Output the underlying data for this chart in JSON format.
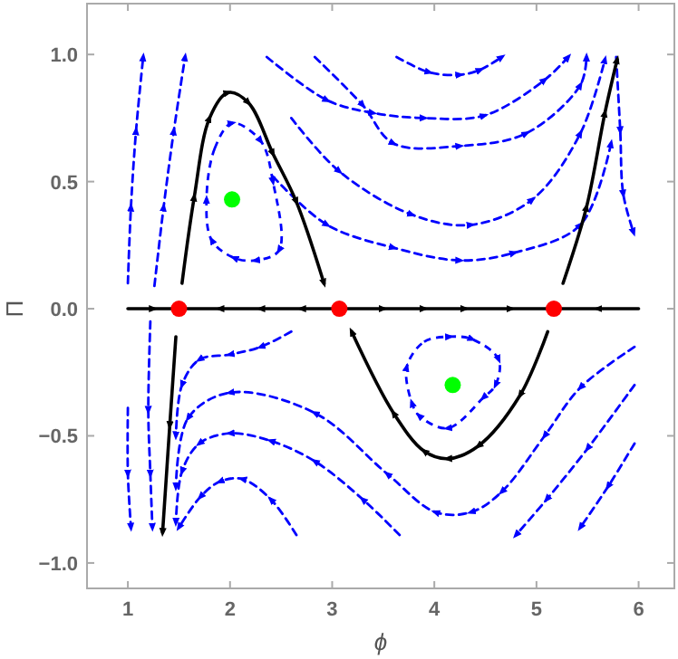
{
  "chart_data": {
    "type": "line",
    "xlabel": "ϕ",
    "ylabel": "Π",
    "xlim": [
      0.6,
      6.35
    ],
    "ylim": [
      -1.1,
      1.2
    ],
    "xticks": [
      1,
      2,
      3,
      4,
      5,
      6
    ],
    "yticks": [
      {
        "value": -1,
        "label": "−1.0"
      },
      {
        "value": -0.5,
        "label": "−0.5"
      },
      {
        "value": 0,
        "label": "0.0"
      },
      {
        "value": 0.5,
        "label": "0.5"
      },
      {
        "value": 1,
        "label": "1.0"
      }
    ],
    "marker": "none",
    "series": [
      {
        "color": "#0000ff",
        "line_style": "dashed",
        "x": [
          1.0,
          1.03,
          1.08,
          1.15
        ],
        "values": [
          0.1,
          0.4,
          0.7,
          0.99
        ]
      },
      {
        "color": "#0000ff",
        "line_style": "dashed",
        "x": [
          1.26,
          1.35,
          1.45,
          1.56
        ],
        "values": [
          0.09,
          0.4,
          0.7,
          0.99
        ]
      },
      {
        "color": "#0000ff",
        "line_style": "dashed",
        "x": [
          3.63,
          3.95,
          4.25,
          4.45,
          4.66
        ],
        "values": [
          0.99,
          0.93,
          0.92,
          0.94,
          0.99
        ]
      },
      {
        "color": "#0000ff",
        "line_style": "dashed",
        "x": [
          2.36,
          2.95,
          3.4,
          3.9,
          4.49,
          5.08,
          5.31
        ],
        "values": [
          0.99,
          0.82,
          0.77,
          0.75,
          0.76,
          0.9,
          0.99
        ]
      },
      {
        "color": "#0000ff",
        "line_style": "dashed",
        "x": [
          2.83,
          3.3,
          3.6,
          4.25,
          4.9,
          5.43,
          5.49
        ],
        "values": [
          0.99,
          0.8,
          0.65,
          0.64,
          0.69,
          0.88,
          0.99
        ]
      },
      {
        "color": "#0000ff",
        "line_style": "dashed",
        "x": [
          2.6,
          3.07,
          3.78,
          4.36,
          4.96,
          5.43,
          5.67
        ],
        "values": [
          0.75,
          0.54,
          0.37,
          0.33,
          0.43,
          0.69,
          0.98
        ]
      },
      {
        "color": "#0000ff",
        "line_style": "dashed",
        "x": [
          2.42,
          2.95,
          3.6,
          4.25,
          4.78,
          5.43,
          5.73
        ],
        "values": [
          0.52,
          0.33,
          0.24,
          0.19,
          0.22,
          0.33,
          0.65
        ]
      },
      {
        "color": "#0000ff",
        "line_style": "dashed",
        "x": [
          5.78,
          5.82,
          5.85,
          5.95
        ],
        "values": [
          0.99,
          0.7,
          0.45,
          0.3
        ]
      },
      {
        "color": "#0000ff",
        "line_style": "dashed",
        "x": [
          1.22,
          1.2,
          1.22,
          1.24
        ],
        "values": [
          -0.05,
          -0.4,
          -0.65,
          -0.86
        ]
      },
      {
        "color": "#0000ff",
        "line_style": "dashed",
        "x": [
          1.0,
          1.0,
          1.03
        ],
        "values": [
          -0.39,
          -0.65,
          -0.86
        ]
      },
      {
        "color": "#0000ff",
        "line_style": "dashed",
        "x": [
          2.6,
          2.3,
          2.0,
          1.7,
          1.53,
          1.47
        ],
        "values": [
          -0.09,
          -0.15,
          -0.18,
          -0.2,
          -0.3,
          -0.5
        ]
      },
      {
        "color": "#0000ff",
        "line_style": "dashed",
        "x": [
          5.96,
          5.43,
          5.08,
          4.66,
          4.36,
          4.01,
          3.54,
          2.83,
          2.0,
          1.59,
          1.47
        ],
        "values": [
          -0.15,
          -0.31,
          -0.5,
          -0.72,
          -0.8,
          -0.8,
          -0.65,
          -0.41,
          -0.33,
          -0.43,
          -0.7
        ]
      },
      {
        "color": "#0000ff",
        "line_style": "dashed",
        "x": [
          3.66,
          3.3,
          2.83,
          2.4,
          2.0,
          1.7,
          1.53,
          1.47
        ],
        "values": [
          -0.89,
          -0.75,
          -0.6,
          -0.52,
          -0.49,
          -0.53,
          -0.64,
          -0.84
        ]
      },
      {
        "color": "#0000ff",
        "line_style": "dashed",
        "x": [
          2.65,
          2.4,
          2.12,
          1.9,
          1.71,
          1.5
        ],
        "values": [
          -0.89,
          -0.75,
          -0.67,
          -0.68,
          -0.74,
          -0.86
        ]
      },
      {
        "color": "#0000ff",
        "line_style": "dashed",
        "x": [
          5.96,
          5.7,
          5.43
        ],
        "values": [
          -0.53,
          -0.7,
          -0.86
        ]
      },
      {
        "color": "#0000ff",
        "line_style": "dashed",
        "x": [
          5.96,
          5.5,
          5.1,
          4.8
        ],
        "values": [
          -0.3,
          -0.55,
          -0.75,
          -0.89
        ]
      },
      {
        "color": "#000000",
        "line_style": "solid",
        "x": [
          1.53,
          1.65,
          1.8,
          1.98,
          2.18,
          2.42,
          2.65,
          2.92
        ],
        "values": [
          0.1,
          0.44,
          0.75,
          0.85,
          0.81,
          0.61,
          0.42,
          0.1
        ]
      },
      {
        "color": "#000000",
        "line_style": "solid",
        "x": [
          5.26,
          5.49,
          5.67,
          5.79
        ],
        "values": [
          0.1,
          0.4,
          0.77,
          0.98
        ]
      },
      {
        "color": "#000000",
        "line_style": "solid",
        "x": [
          1.47,
          1.41,
          1.34
        ],
        "values": [
          -0.11,
          -0.46,
          -0.88
        ]
      },
      {
        "color": "#000000",
        "line_style": "solid",
        "x": [
          5.11,
          4.84,
          4.43,
          4.13,
          3.9,
          3.6,
          3.19
        ],
        "values": [
          -0.09,
          -0.34,
          -0.54,
          -0.59,
          -0.56,
          -0.41,
          -0.09
        ]
      },
      {
        "color": "#000000",
        "line_style": "solid",
        "x": [
          1.0,
          1.25,
          1.5
        ],
        "values": [
          0,
          0,
          0
        ]
      },
      {
        "color": "#000000",
        "line_style": "solid",
        "x": [
          3.07,
          2.7,
          2.3,
          1.9,
          1.5
        ],
        "values": [
          0,
          0,
          0,
          0,
          0
        ]
      },
      {
        "color": "#000000",
        "line_style": "solid",
        "x": [
          3.07,
          3.5,
          3.9,
          4.3,
          4.75,
          5.17
        ],
        "values": [
          0,
          0,
          0,
          0,
          0,
          0
        ]
      },
      {
        "color": "#000000",
        "line_style": "solid",
        "x": [
          6.0,
          5.6,
          5.17
        ],
        "values": [
          0,
          0,
          0
        ]
      },
      {
        "type": "scatter",
        "marker": "circle",
        "color": "#ff0000",
        "x": [
          1.5,
          3.07,
          5.17
        ],
        "values": [
          0,
          0,
          0
        ]
      },
      {
        "type": "scatter",
        "marker": "circle",
        "color": "#00ff00",
        "x": [
          2.02,
          4.18
        ],
        "values": [
          0.43,
          -0.3
        ]
      }
    ]
  }
}
